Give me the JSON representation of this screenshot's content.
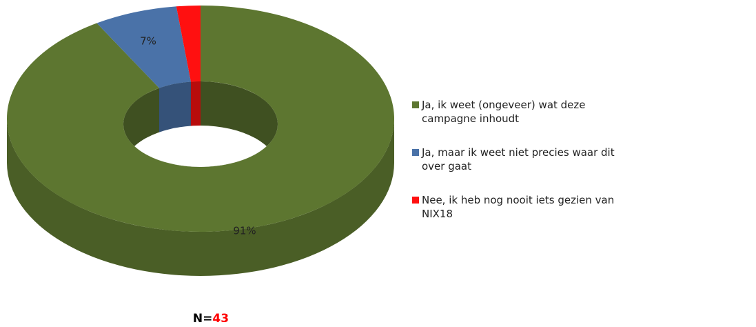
{
  "chart_data": {
    "type": "donut3d",
    "categories": [
      "Ja, ik weet (ongeveer) wat deze campagne inhoudt",
      "Ja, maar ik weet niet precies waar dit over gaat",
      "Nee, ik heb nog nooit iets gezien van NIX18"
    ],
    "values": [
      91,
      7,
      2
    ],
    "value_labels": [
      "91%",
      "7%",
      null
    ],
    "colors": [
      "#5d7630",
      "#4a72a8",
      "#ff1010"
    ],
    "sample_size": {
      "label": "N=",
      "value": 43
    }
  }
}
